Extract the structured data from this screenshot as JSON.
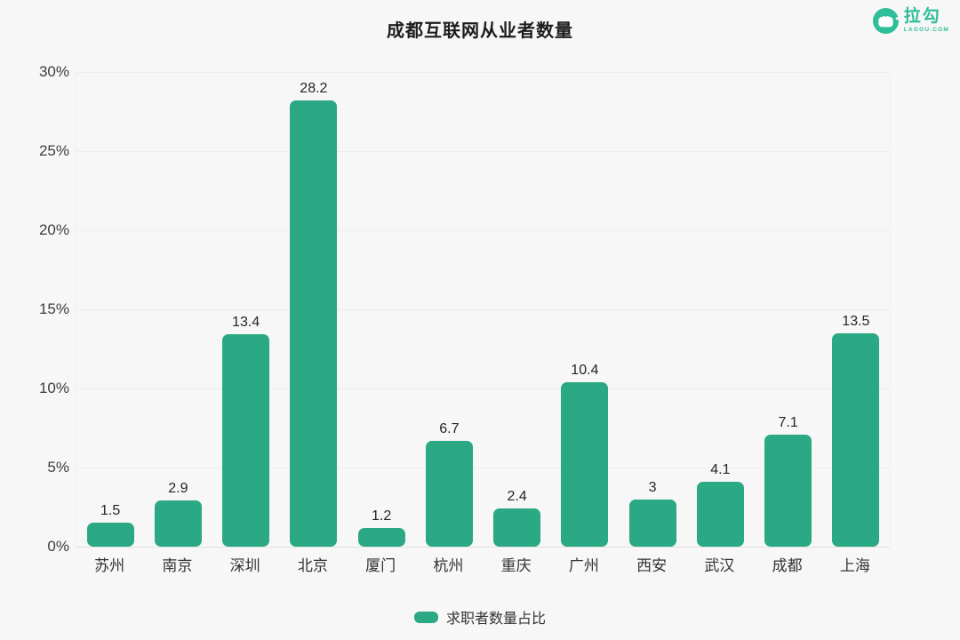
{
  "page": {
    "background": "#f7f7f7"
  },
  "logo": {
    "brand": "拉勾",
    "domain": "LAGOU.COM",
    "color": "#2fbe9a"
  },
  "chart_data": {
    "type": "bar",
    "title": "成都互联网从业者数量",
    "categories": [
      "苏州",
      "南京",
      "深圳",
      "北京",
      "厦门",
      "杭州",
      "重庆",
      "广州",
      "西安",
      "武汉",
      "成都",
      "上海"
    ],
    "values": [
      1.5,
      2.9,
      13.4,
      28.2,
      1.2,
      6.7,
      2.4,
      10.4,
      3,
      4.1,
      7.1,
      13.5
    ],
    "value_labels": [
      "1.5",
      "2.9",
      "13.4",
      "28.2",
      "1.2",
      "6.7",
      "2.4",
      "10.4",
      "3",
      "4.1",
      "7.1",
      "13.5"
    ],
    "xlabel": "",
    "ylabel": "",
    "ylim": [
      0,
      30
    ],
    "y_ticks": [
      0,
      5,
      10,
      15,
      20,
      25,
      30
    ],
    "y_tick_labels": [
      "0%",
      "5%",
      "10%",
      "15%",
      "20%",
      "25%",
      "30%"
    ],
    "grid": true,
    "bar_color": "#2ba884",
    "legend": {
      "label": "求职者数量占比",
      "position": "bottom"
    }
  }
}
